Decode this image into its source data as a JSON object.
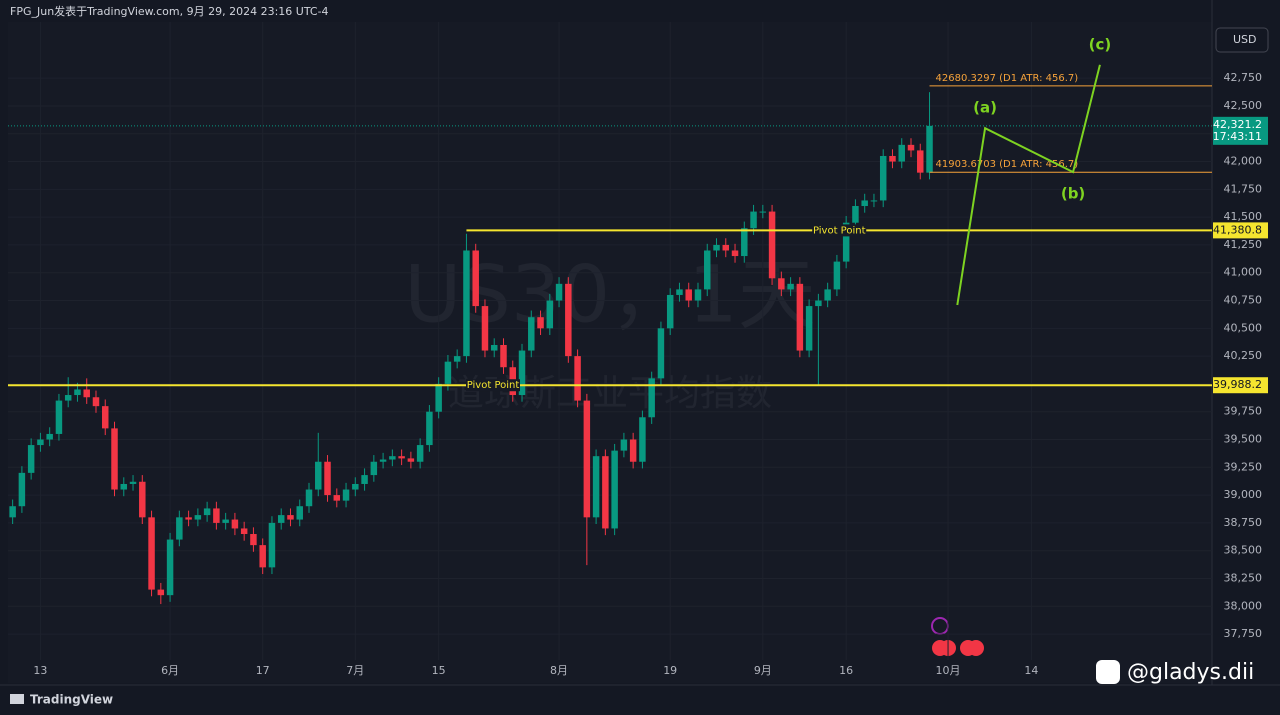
{
  "header": {
    "title": "FPG_Jun发表于TradingView.com, 9月 29, 2024 23:16 UTC-4"
  },
  "watermark": {
    "symbol": "US30，1天",
    "name": "道琼斯工业平均指数"
  },
  "footer": {
    "brand": "TradingView",
    "credit": "@gladys.dii"
  },
  "chart_data": {
    "type": "candlestick",
    "currency": "USD",
    "grid": true,
    "up_color": "#089981",
    "down_color": "#f23645",
    "categories": [
      null,
      null,
      null,
      "13",
      null,
      null,
      null,
      null,
      null,
      null,
      null,
      null,
      null,
      null,
      null,
      null,
      null,
      "6月",
      null,
      null,
      null,
      null,
      null,
      null,
      null,
      null,
      null,
      "17",
      null,
      null,
      null,
      null,
      null,
      null,
      null,
      null,
      null,
      "7月",
      null,
      null,
      null,
      null,
      null,
      null,
      null,
      null,
      "15",
      null,
      null,
      null,
      null,
      null,
      null,
      null,
      null,
      null,
      null,
      null,
      null,
      "8月",
      null,
      null,
      null,
      null,
      null,
      null,
      null,
      null,
      null,
      null,
      null,
      "19",
      null,
      null,
      null,
      null,
      null,
      null,
      null,
      null,
      null,
      "9月",
      null,
      null,
      null,
      null,
      null,
      null,
      null,
      null,
      "16",
      null,
      null,
      null,
      null,
      null,
      null,
      null,
      null,
      null,
      null,
      "10月",
      null,
      null,
      null,
      null,
      null,
      null,
      null,
      null,
      "14",
      null,
      null,
      null,
      null,
      null,
      null,
      null,
      null,
      null,
      null,
      null,
      null,
      null,
      null,
      null,
      null,
      null,
      null,
      null
    ],
    "open": [
      38800,
      38900,
      39200,
      39450,
      39500,
      39550,
      39850,
      39900,
      39950,
      39880,
      39800,
      39600,
      39050,
      39100,
      39120,
      38800,
      38150,
      38100,
      38600,
      38800,
      38780,
      38820,
      38880,
      38750,
      38780,
      38700,
      38650,
      38550,
      38350,
      38750,
      38820,
      38780,
      38900,
      39050,
      39300,
      39000,
      38950,
      39050,
      39100,
      39180,
      39300,
      39320,
      39350,
      39330,
      39300,
      39450,
      39750,
      40000,
      40200,
      40250,
      41200,
      40700,
      40300,
      40350,
      40150,
      39900,
      40300,
      40600,
      40500,
      40750,
      40900,
      40250,
      39850,
      38800,
      39350,
      38700,
      39400,
      39500,
      39300,
      39700,
      40050,
      40500,
      40800,
      40850,
      40750,
      40850,
      41200,
      41250,
      41200,
      41150,
      41400,
      41550,
      41550,
      40950,
      40850,
      40900,
      40300,
      40700,
      40750,
      40850,
      41100,
      41450,
      41600,
      41650,
      41650,
      42050,
      42000,
      42150,
      42100,
      41900,
      null,
      null,
      null,
      null,
      null,
      null,
      null,
      null,
      null,
      null,
      null,
      null,
      null,
      null,
      null,
      null,
      null,
      null,
      null,
      null,
      null,
      null,
      null,
      null,
      null,
      null,
      null,
      null,
      null,
      null
    ],
    "high": [
      38960,
      39260,
      39510,
      39560,
      39610,
      39910,
      40060,
      40010,
      40050,
      39940,
      39860,
      39660,
      39160,
      39180,
      39180,
      38860,
      38210,
      38660,
      38860,
      38860,
      38880,
      38940,
      38940,
      38840,
      38840,
      38760,
      38710,
      38610,
      38810,
      38880,
      38880,
      38960,
      39110,
      39560,
      39360,
      39060,
      39110,
      39160,
      39240,
      39360,
      39380,
      39410,
      39410,
      39390,
      39510,
      39810,
      40060,
      40260,
      40310,
      41350,
      41260,
      40760,
      40410,
      40410,
      40210,
      40360,
      40660,
      40660,
      40810,
      40960,
      40960,
      40310,
      39910,
      39410,
      39410,
      39460,
      39560,
      39560,
      39760,
      40110,
      40560,
      40860,
      40910,
      40910,
      40910,
      41260,
      41310,
      41310,
      41260,
      41460,
      41610,
      41610,
      41610,
      41010,
      40960,
      40960,
      40760,
      40810,
      40910,
      41160,
      41510,
      41660,
      41710,
      41710,
      42110,
      42110,
      42210,
      42210,
      42160,
      42624,
      null,
      null,
      null,
      null,
      null,
      null,
      null,
      null,
      null,
      null,
      null,
      null,
      null,
      null,
      null,
      null,
      null,
      null,
      null,
      null,
      null,
      null,
      null,
      null,
      null,
      null,
      null,
      null,
      null,
      null
    ],
    "low": [
      38740,
      38840,
      39140,
      39390,
      39440,
      39490,
      39790,
      39840,
      39820,
      39740,
      39540,
      38990,
      38990,
      39040,
      38740,
      38090,
      38020,
      38040,
      38540,
      38720,
      38720,
      38760,
      38690,
      38690,
      38640,
      38590,
      38490,
      38290,
      38290,
      38690,
      38720,
      38720,
      38840,
      38990,
      38940,
      38890,
      38890,
      38990,
      39040,
      39120,
      39240,
      39260,
      39270,
      39240,
      39240,
      39390,
      39690,
      39940,
      40140,
      40190,
      40640,
      40240,
      40240,
      40090,
      39840,
      39840,
      40240,
      40440,
      40440,
      40690,
      40190,
      39790,
      38370,
      38740,
      38640,
      38640,
      39340,
      39240,
      39240,
      39640,
      39990,
      40440,
      40740,
      40690,
      40690,
      40790,
      41140,
      41140,
      41090,
      41090,
      41340,
      41490,
      40890,
      40790,
      40790,
      40240,
      40240,
      39990,
      40690,
      40790,
      41040,
      41390,
      41540,
      41590,
      41590,
      41940,
      41940,
      42040,
      41840,
      41840,
      null,
      null,
      null,
      null,
      null,
      null,
      null,
      null,
      null,
      null,
      null,
      null,
      null,
      null,
      null,
      null,
      null,
      null,
      null,
      null,
      null,
      null,
      null,
      null,
      null,
      null,
      null,
      null,
      null,
      null
    ],
    "close": [
      38900,
      39200,
      39450,
      39500,
      39550,
      39850,
      39900,
      39950,
      39880,
      39800,
      39600,
      39050,
      39100,
      39120,
      38800,
      38150,
      38100,
      38600,
      38800,
      38780,
      38820,
      38880,
      38750,
      38780,
      38700,
      38650,
      38550,
      38350,
      38750,
      38820,
      38780,
      38900,
      39050,
      39300,
      39000,
      38950,
      39050,
      39100,
      39180,
      39300,
      39320,
      39350,
      39330,
      39300,
      39450,
      39750,
      40000,
      40200,
      40250,
      41200,
      40700,
      40300,
      40350,
      40150,
      39900,
      40300,
      40600,
      40500,
      40750,
      40900,
      40250,
      39850,
      38800,
      39350,
      38700,
      39400,
      39500,
      39300,
      39700,
      40050,
      40500,
      40800,
      40850,
      40750,
      40850,
      41200,
      41250,
      41200,
      41150,
      41400,
      41550,
      41550,
      40950,
      40850,
      40900,
      40300,
      40700,
      40750,
      40850,
      41100,
      41450,
      41600,
      41650,
      41650,
      42050,
      42000,
      42150,
      42100,
      41900,
      42321.2,
      null,
      null,
      null,
      null,
      null,
      null,
      null,
      null,
      null,
      null,
      null,
      null,
      null,
      null,
      null,
      null,
      null,
      null,
      null,
      null,
      null,
      null,
      null,
      null,
      null,
      null,
      null,
      null,
      null,
      null
    ],
    "ylim": [
      37310,
      43255
    ],
    "yticks": [
      {
        "value": 37750,
        "label": "37,750"
      },
      {
        "value": 38000,
        "label": "38,000"
      },
      {
        "value": 38250,
        "label": "38,250"
      },
      {
        "value": 38500,
        "label": "38,500"
      },
      {
        "value": 38750,
        "label": "38,750"
      },
      {
        "value": 39000,
        "label": "39,000"
      },
      {
        "value": 39250,
        "label": "39,250"
      },
      {
        "value": 39500,
        "label": "39,500"
      },
      {
        "value": 39750,
        "label": "39,750"
      },
      {
        "value": 40000,
        "label": "40,000"
      },
      {
        "value": 40250,
        "label": "40,250"
      },
      {
        "value": 40500,
        "label": "40,500"
      },
      {
        "value": 40750,
        "label": "40,750"
      },
      {
        "value": 41000,
        "label": "41,000"
      },
      {
        "value": 41250,
        "label": "41,250"
      },
      {
        "value": 41500,
        "label": "41,500"
      },
      {
        "value": 41750,
        "label": "41,750"
      },
      {
        "value": 42000,
        "label": "42,000"
      },
      {
        "value": 42250,
        "label": "42,250"
      },
      {
        "value": 42500,
        "label": "42,500"
      },
      {
        "value": 42750,
        "label": "42,750"
      }
    ],
    "last_price": {
      "value": 42321.2,
      "label": "42,321.2",
      "countdown": "17:43:11",
      "color": "#089981"
    },
    "levels": [
      {
        "name": "Pivot Point",
        "value": 41380.8,
        "value_label": "41,380.8",
        "color": "#f5e52f",
        "x0": 49
      },
      {
        "name": "Pivot Point",
        "value": 39988.2,
        "value_label": "39,988.2",
        "color": "#f5e52f"
      },
      {
        "label": "42680.3297 (D1 ATR: 456.7)",
        "value": 42680.3297,
        "color": "#f5a23a",
        "x0": 99
      },
      {
        "label": "41903.6703 (D1 ATR: 456.7)",
        "value": 41903.6703,
        "color": "#f5a23a",
        "x0": 99
      }
    ],
    "wave": {
      "x": [
        102,
        105,
        114.5,
        117.4
      ],
      "y": [
        40710,
        42300,
        41905,
        42870
      ],
      "labels": [
        "(a)",
        "(b)",
        "(c)"
      ],
      "color": "#7ed321"
    }
  }
}
